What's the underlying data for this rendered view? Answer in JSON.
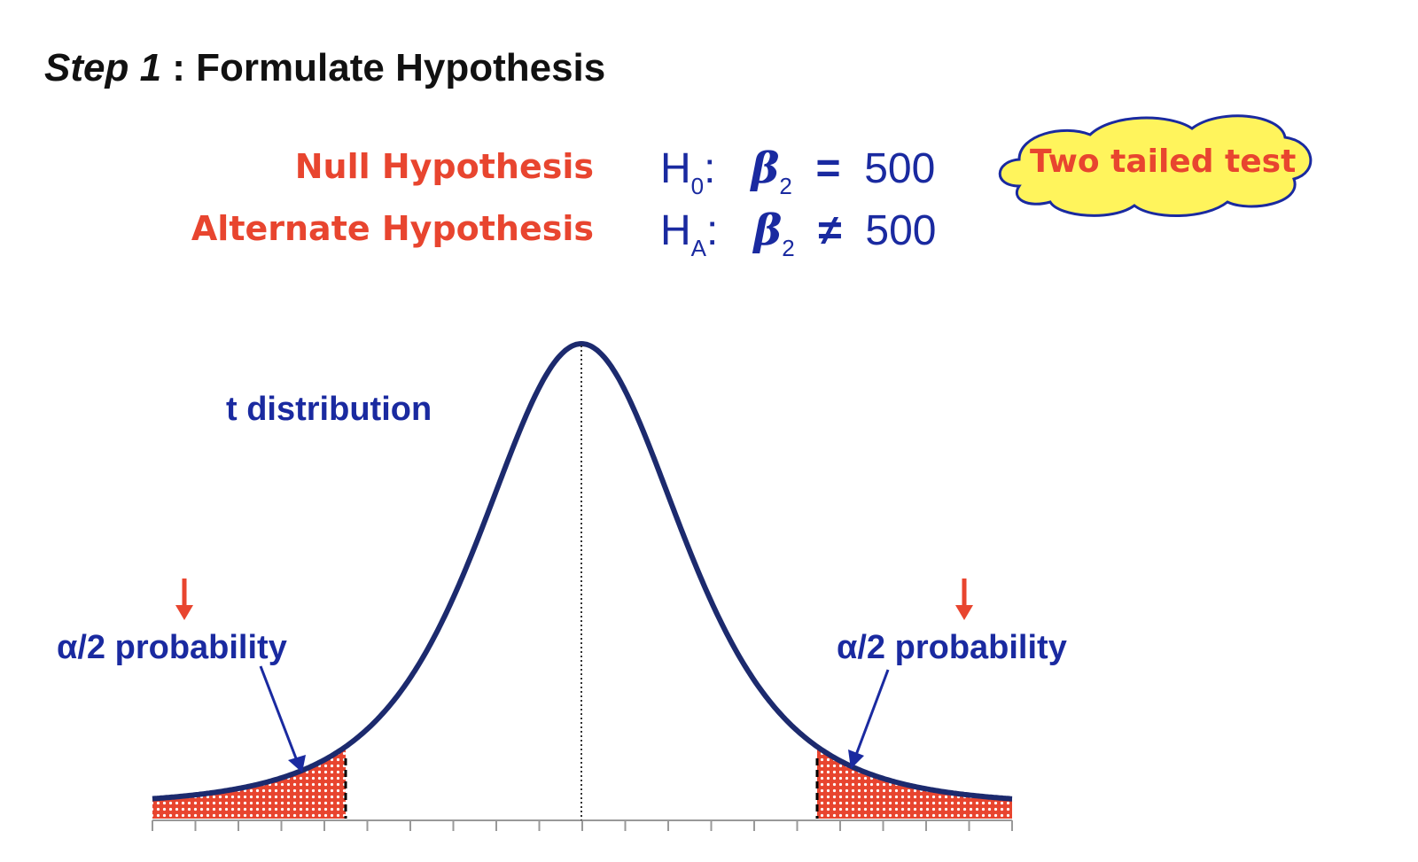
{
  "title": {
    "step": "Step 1",
    "rest": " : Formulate Hypothesis"
  },
  "hypotheses": {
    "null_label": "Null Hypothesis",
    "alt_label": "Alternate Hypothesis",
    "null_symbol": "H",
    "null_sub": "0",
    "alt_symbol": "H",
    "alt_sub": "A",
    "beta": "β",
    "beta_sub": "2",
    "null_op": "=",
    "alt_op": "≠",
    "value": "500"
  },
  "callout": {
    "text": "Two tailed test"
  },
  "diagram": {
    "distribution_label": "t distribution",
    "left_tail_label": "α/2 probability",
    "right_tail_label": "α/2 probability",
    "tail_arrow_glyph": "↓"
  },
  "colors": {
    "title": "#111111",
    "hypothesis_label": "#e8452f",
    "math": "#1a2aa0",
    "curve": "#1c2a6e",
    "tail_fill": "#e8452f",
    "cloud_fill": "#fff45c",
    "cloud_stroke": "#1a2aa0"
  }
}
